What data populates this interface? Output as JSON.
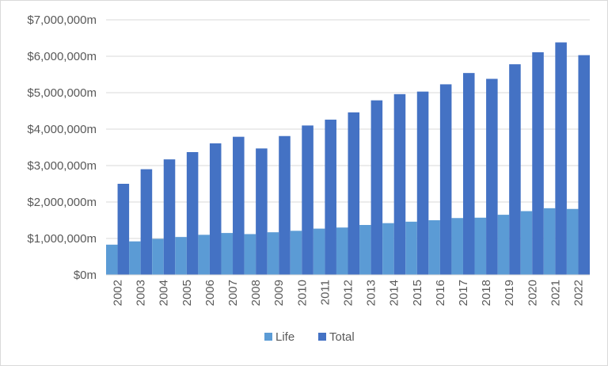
{
  "chart_data": {
    "type": "bar",
    "title": "",
    "xlabel": "",
    "ylabel": "",
    "categories": [
      "2002",
      "2003",
      "2004",
      "2005",
      "2006",
      "2007",
      "2008",
      "2009",
      "2010",
      "2011",
      "2012",
      "2013",
      "2014",
      "2015",
      "2016",
      "2017",
      "2018",
      "2019",
      "2020",
      "2021",
      "2022"
    ],
    "series": [
      {
        "name": "Life",
        "color": "#5b9bd5",
        "values": [
          830000,
          920000,
          990000,
          1040000,
          1100000,
          1150000,
          1120000,
          1170000,
          1210000,
          1270000,
          1300000,
          1370000,
          1420000,
          1460000,
          1500000,
          1560000,
          1570000,
          1650000,
          1750000,
          1830000,
          1810000
        ]
      },
      {
        "name": "Total",
        "color": "#4472c4",
        "values": [
          2500000,
          2900000,
          3170000,
          3370000,
          3610000,
          3790000,
          3470000,
          3810000,
          4100000,
          4260000,
          4460000,
          4790000,
          4960000,
          5030000,
          5230000,
          5540000,
          5380000,
          5780000,
          6110000,
          6380000,
          6030000
        ]
      }
    ],
    "ylim": [
      0,
      7000000
    ],
    "yticks": [
      0,
      1000000,
      2000000,
      3000000,
      4000000,
      5000000,
      6000000,
      7000000
    ],
    "ytick_labels": [
      "$0m",
      "$1,000,000m",
      "$2,000,000m",
      "$3,000,000m",
      "$4,000,000m",
      "$5,000,000m",
      "$6,000,000m",
      "$7,000,000m"
    ],
    "grid": true,
    "legend_position": "bottom"
  }
}
